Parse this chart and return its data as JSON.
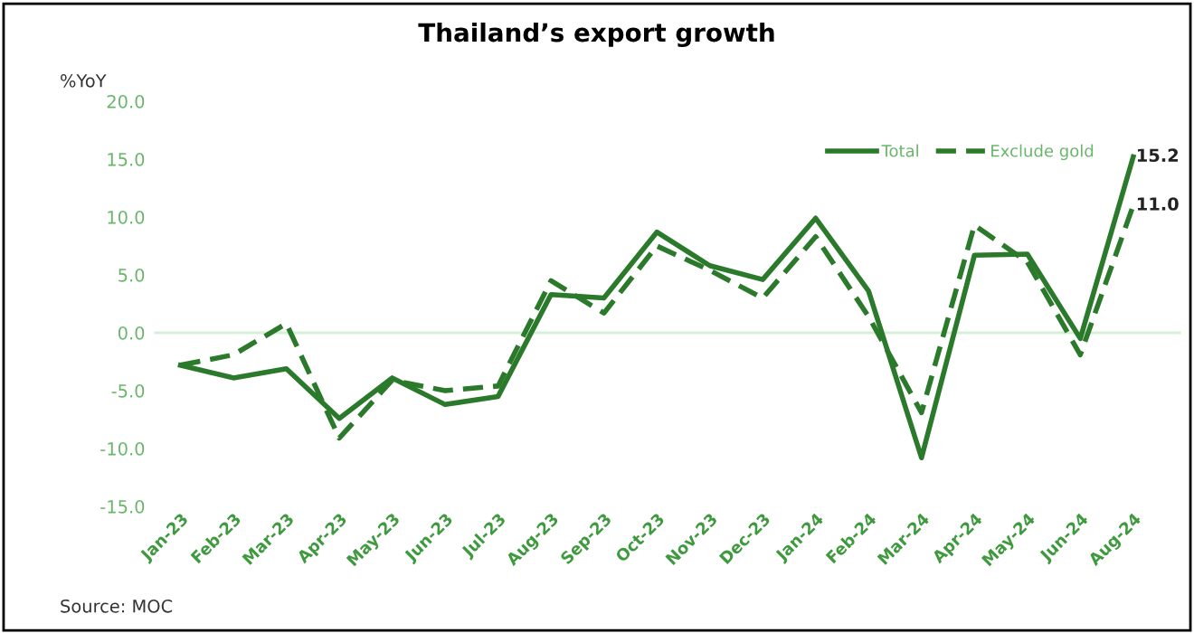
{
  "chart_data": {
    "type": "line",
    "title": "Thailand’s export growth",
    "ylabel": "%YoY",
    "annotations": [
      "Source: MOC"
    ],
    "categories": [
      "Jan-23",
      "Feb-23",
      "Mar-23",
      "Apr-23",
      "May-23",
      "Jun-23",
      "Jul-23",
      "Aug-23",
      "Sep-23",
      "Oct-23",
      "Nov-23",
      "Dec-23",
      "Jan-24",
      "Feb-24",
      "Mar-24",
      "Apr-24",
      "May-24",
      "Jun-24",
      "Aug-24"
    ],
    "series": [
      {
        "name": "Total",
        "color": "#2b7a2b",
        "line_style": "solid",
        "values": [
          -2.8,
          -3.9,
          -3.1,
          -7.4,
          -3.9,
          -6.2,
          -5.5,
          3.3,
          3.0,
          8.7,
          5.8,
          4.6,
          9.9,
          3.6,
          -10.8,
          6.7,
          6.8,
          -0.5,
          15.2
        ],
        "value_labels": [
          null,
          null,
          null,
          null,
          null,
          null,
          null,
          null,
          null,
          null,
          null,
          null,
          null,
          null,
          null,
          null,
          null,
          null,
          "15.2"
        ]
      },
      {
        "name": "Exclude gold",
        "color": "#2b7a2b",
        "line_style": "dashed",
        "values": [
          -2.8,
          -1.9,
          0.8,
          -9.1,
          -4.1,
          -5.0,
          -4.6,
          4.5,
          1.7,
          7.5,
          5.4,
          3.0,
          8.3,
          1.4,
          -6.9,
          9.3,
          6.1,
          -1.9,
          11.0
        ],
        "value_labels": [
          null,
          null,
          null,
          null,
          null,
          null,
          null,
          null,
          null,
          null,
          null,
          null,
          null,
          null,
          null,
          null,
          null,
          null,
          "11.0"
        ]
      }
    ],
    "ylim": [
      -15,
      20
    ],
    "yticks": [
      {
        "value": -15,
        "label": "-15.0"
      },
      {
        "value": -10,
        "label": "-10.0"
      },
      {
        "value": -5,
        "label": "-5.0"
      },
      {
        "value": 0,
        "label": "0.0"
      },
      {
        "value": 5,
        "label": "5.0"
      },
      {
        "value": 10,
        "label": "10.0"
      },
      {
        "value": 15,
        "label": "15.0"
      },
      {
        "value": 20,
        "label": "20.0"
      }
    ],
    "ref_lines": [
      {
        "axis": "y",
        "value": 0,
        "color": "#d6f0d6"
      }
    ],
    "grid": false,
    "legend": "top right",
    "marker": "none"
  }
}
